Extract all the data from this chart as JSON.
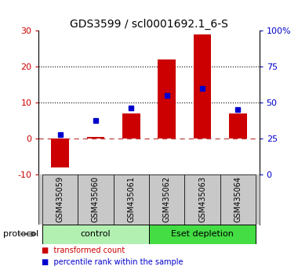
{
  "title": "GDS3599 / scl0001692.1_6-S",
  "samples": [
    "GSM435059",
    "GSM435060",
    "GSM435061",
    "GSM435062",
    "GSM435063",
    "GSM435064"
  ],
  "red_values": [
    -8.0,
    0.5,
    7.0,
    22.0,
    29.0,
    7.0
  ],
  "blue_values_left": [
    1.0,
    5.0,
    8.5,
    12.0,
    14.0,
    8.0
  ],
  "ylim_left": [
    -10,
    30
  ],
  "ylim_right": [
    0,
    100
  ],
  "yticks_left": [
    -10,
    0,
    10,
    20,
    30
  ],
  "yticks_right": [
    0,
    25,
    50,
    75,
    100
  ],
  "ytick_labels_left": [
    "-10",
    "0",
    "10",
    "20",
    "30"
  ],
  "ytick_labels_right": [
    "0",
    "25",
    "50",
    "75",
    "100%"
  ],
  "hlines_dotted": [
    10,
    20
  ],
  "red_color": "#cc0000",
  "blue_color": "#0000cc",
  "bar_width": 0.5,
  "groups": [
    {
      "label": "control",
      "indices": [
        0,
        1,
        2
      ],
      "color": "#b2f0b2"
    },
    {
      "label": "Eset depletion",
      "indices": [
        3,
        4,
        5
      ],
      "color": "#44dd44"
    }
  ],
  "protocol_label": "protocol",
  "legend": [
    {
      "label": "transformed count",
      "color": "#cc0000"
    },
    {
      "label": "percentile rank within the sample",
      "color": "#0000cc"
    }
  ],
  "bg_color": "#ffffff",
  "sample_area_color": "#c8c8c8",
  "title_fontsize": 10,
  "tick_fontsize": 8,
  "label_fontsize": 8,
  "sample_fontsize": 7
}
